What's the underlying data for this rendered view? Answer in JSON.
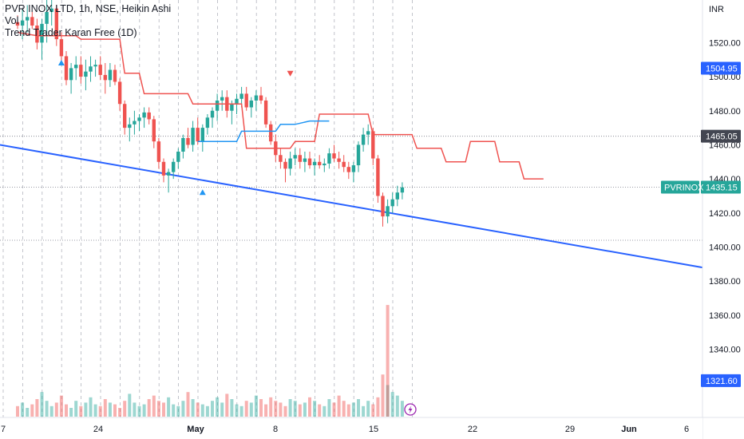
{
  "legend": {
    "symbol_line": "PVR INOX LTD, 1h, NSE, Heikin Ashi",
    "vol_line": "Vol",
    "indicator_line": "Trend Trader Karan Free (1D)"
  },
  "currency": "INR",
  "price_badges": [
    {
      "name": "stop-level-badge",
      "value": "1504.95",
      "price": 1504.95,
      "color": "#2962ff"
    },
    {
      "name": "resistance-badge",
      "value": "1465.05",
      "price": 1465.05,
      "color": "#434651"
    },
    {
      "name": "last-price-badge",
      "value": "1435.15",
      "price": 1435.15,
      "color": "#26a69a",
      "label": "PVRINOX"
    },
    {
      "name": "volume-badge",
      "value": "1321.60",
      "price": 1321.6,
      "color": "#2962ff"
    }
  ],
  "colors": {
    "up": "#26a69a",
    "down": "#ef5350",
    "trendline": "#2962ff",
    "indicator_red": "#ef5350",
    "indicator_blue": "#2196f3",
    "session_line": "#b2b5be",
    "lightning_icon": "#9c27b0"
  },
  "chart_data": {
    "type": "candlestick",
    "title": "PVR INOX LTD, 1h, NSE, Heikin Ashi",
    "ylabel": "INR",
    "ylim": [
      1300,
      1545
    ],
    "y_ticks": [
      1320,
      1340,
      1360,
      1380,
      1400,
      1420,
      1440,
      1460,
      1480,
      1500,
      1520
    ],
    "x_tick_labels": [
      "7",
      "24",
      "May",
      "8",
      "15",
      "22",
      "29",
      "Jun",
      "6"
    ],
    "horizontal_reference_lines": [
      1465.05,
      1435.15,
      1404
    ],
    "trendline": {
      "start": [
        0,
        1460
      ],
      "end": [
        123,
        1388
      ],
      "color": "#2962ff"
    },
    "indicator_red_steps": [
      [
        0,
        1526
      ],
      [
        4,
        1524
      ],
      [
        12,
        1524
      ],
      [
        13,
        1522
      ],
      [
        21,
        1522
      ],
      [
        22,
        1502
      ],
      [
        25,
        1502
      ],
      [
        26,
        1490
      ],
      [
        35,
        1490
      ],
      [
        36,
        1484
      ],
      [
        46,
        1484
      ],
      [
        47,
        1458
      ],
      [
        56,
        1458
      ],
      [
        57,
        1462
      ],
      [
        61,
        1462
      ],
      [
        62,
        1478
      ],
      [
        72,
        1478
      ],
      [
        73,
        1466
      ],
      [
        81,
        1466
      ],
      [
        82,
        1458
      ],
      [
        87,
        1458
      ],
      [
        88,
        1450
      ],
      [
        92,
        1450
      ],
      [
        93,
        1462
      ],
      [
        98,
        1462
      ],
      [
        99,
        1450
      ],
      [
        103,
        1450
      ],
      [
        104,
        1440
      ],
      [
        108,
        1440
      ]
    ],
    "indicator_blue_steps": [
      [
        37,
        1462
      ],
      [
        45,
        1462
      ],
      [
        46,
        1468
      ],
      [
        53,
        1468
      ],
      [
        54,
        1472
      ],
      [
        57,
        1472
      ],
      [
        60,
        1474
      ],
      [
        64,
        1474
      ]
    ],
    "signals_up": [
      [
        9,
        1508
      ],
      [
        38,
        1432
      ]
    ],
    "signals_down": [
      [
        56,
        1502
      ]
    ],
    "candles": [
      [
        1532,
        1536,
        1528,
        1530
      ],
      [
        1530,
        1540,
        1522,
        1533
      ],
      [
        1533,
        1542,
        1526,
        1535
      ],
      [
        1535,
        1538,
        1528,
        1530
      ],
      [
        1530,
        1534,
        1516,
        1520
      ],
      [
        1520,
        1534,
        1510,
        1531
      ],
      [
        1531,
        1548,
        1520,
        1538
      ],
      [
        1538,
        1545,
        1530,
        1540
      ],
      [
        1540,
        1542,
        1518,
        1522
      ],
      [
        1522,
        1526,
        1508,
        1512
      ],
      [
        1512,
        1515,
        1495,
        1498
      ],
      [
        1498,
        1508,
        1490,
        1505
      ],
      [
        1505,
        1512,
        1498,
        1507
      ],
      [
        1507,
        1512,
        1496,
        1500
      ],
      [
        1500,
        1510,
        1492,
        1503
      ],
      [
        1503,
        1512,
        1497,
        1506
      ],
      [
        1506,
        1510,
        1500,
        1507
      ],
      [
        1507,
        1512,
        1498,
        1501
      ],
      [
        1501,
        1508,
        1490,
        1498
      ],
      [
        1498,
        1508,
        1494,
        1504
      ],
      [
        1504,
        1507,
        1495,
        1497
      ],
      [
        1497,
        1499,
        1480,
        1484
      ],
      [
        1484,
        1486,
        1466,
        1470
      ],
      [
        1470,
        1476,
        1462,
        1472
      ],
      [
        1472,
        1480,
        1466,
        1474
      ],
      [
        1474,
        1478,
        1468,
        1476
      ],
      [
        1476,
        1482,
        1470,
        1479
      ],
      [
        1479,
        1482,
        1472,
        1475
      ],
      [
        1475,
        1477,
        1458,
        1462
      ],
      [
        1462,
        1464,
        1446,
        1450
      ],
      [
        1450,
        1452,
        1438,
        1442
      ],
      [
        1442,
        1446,
        1432,
        1444
      ],
      [
        1444,
        1452,
        1440,
        1450
      ],
      [
        1450,
        1458,
        1446,
        1456
      ],
      [
        1456,
        1466,
        1452,
        1464
      ],
      [
        1464,
        1470,
        1458,
        1460
      ],
      [
        1460,
        1474,
        1456,
        1470
      ],
      [
        1470,
        1476,
        1460,
        1462
      ],
      [
        1462,
        1472,
        1456,
        1470
      ],
      [
        1470,
        1478,
        1466,
        1476
      ],
      [
        1476,
        1482,
        1470,
        1480
      ],
      [
        1480,
        1490,
        1474,
        1486
      ],
      [
        1486,
        1492,
        1480,
        1488
      ],
      [
        1488,
        1492,
        1476,
        1480
      ],
      [
        1480,
        1486,
        1472,
        1484
      ],
      [
        1484,
        1490,
        1478,
        1487
      ],
      [
        1487,
        1494,
        1482,
        1490
      ],
      [
        1490,
        1494,
        1480,
        1482
      ],
      [
        1482,
        1488,
        1476,
        1486
      ],
      [
        1486,
        1492,
        1480,
        1489
      ],
      [
        1489,
        1494,
        1484,
        1486
      ],
      [
        1486,
        1488,
        1470,
        1472
      ],
      [
        1472,
        1474,
        1460,
        1462
      ],
      [
        1462,
        1466,
        1450,
        1454
      ],
      [
        1454,
        1458,
        1446,
        1450
      ],
      [
        1450,
        1452,
        1438,
        1446
      ],
      [
        1446,
        1456,
        1442,
        1452
      ],
      [
        1452,
        1458,
        1448,
        1454
      ],
      [
        1454,
        1458,
        1446,
        1450
      ],
      [
        1450,
        1456,
        1444,
        1452
      ],
      [
        1452,
        1456,
        1446,
        1448
      ],
      [
        1448,
        1452,
        1442,
        1450
      ],
      [
        1450,
        1454,
        1446,
        1448
      ],
      [
        1448,
        1452,
        1444,
        1449
      ],
      [
        1449,
        1458,
        1446,
        1455
      ],
      [
        1455,
        1460,
        1450,
        1452
      ],
      [
        1452,
        1456,
        1446,
        1450
      ],
      [
        1450,
        1454,
        1444,
        1447
      ],
      [
        1447,
        1450,
        1440,
        1444
      ],
      [
        1444,
        1450,
        1438,
        1448
      ],
      [
        1448,
        1462,
        1444,
        1460
      ],
      [
        1460,
        1470,
        1456,
        1466
      ],
      [
        1466,
        1472,
        1460,
        1468
      ],
      [
        1468,
        1470,
        1448,
        1452
      ],
      [
        1452,
        1454,
        1426,
        1430
      ],
      [
        1430,
        1432,
        1412,
        1418
      ],
      [
        1418,
        1428,
        1414,
        1424
      ],
      [
        1424,
        1432,
        1420,
        1428
      ],
      [
        1428,
        1436,
        1424,
        1432
      ],
      [
        1432,
        1438,
        1428,
        1435
      ]
    ],
    "volumes": [
      6,
      8,
      5,
      7,
      10,
      14,
      9,
      6,
      8,
      12,
      7,
      5,
      9,
      6,
      8,
      11,
      7,
      6,
      10,
      8,
      7,
      5,
      9,
      13,
      8,
      6,
      7,
      10,
      12,
      9,
      8,
      11,
      7,
      6,
      9,
      14,
      10,
      8,
      7,
      6,
      9,
      11,
      8,
      13,
      10,
      7,
      6,
      9,
      8,
      12,
      10,
      7,
      11,
      9,
      8,
      6,
      10,
      9,
      7,
      8,
      11,
      9,
      7,
      6,
      10,
      8,
      12,
      9,
      7,
      8,
      10,
      6,
      9,
      7,
      11,
      24,
      18,
      14,
      12,
      9
    ],
    "volume_spike_price": 1366
  }
}
